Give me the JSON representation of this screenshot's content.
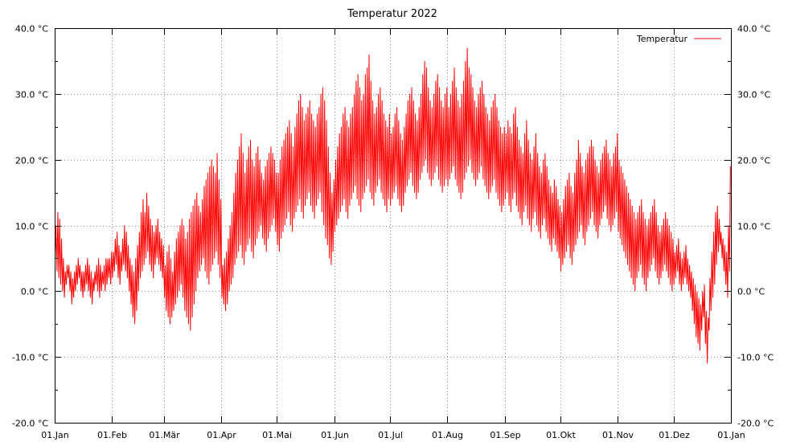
{
  "chart_data": {
    "type": "line",
    "title": "Temperatur 2022",
    "xlabel": "",
    "ylabel": "",
    "x_tick_labels": [
      "01.Jan",
      "01.Feb",
      "01.Mär",
      "01.Apr",
      "01.Mai",
      "01.Jun",
      "01.Jul",
      "01.Aug",
      "01.Sep",
      "01.Okt",
      "01.Nov",
      "01.Dez",
      "01.Jan"
    ],
    "x_tick_dates": [
      "2022-01-01",
      "2022-02-01",
      "2022-03-01",
      "2022-04-01",
      "2022-05-01",
      "2022-06-01",
      "2022-07-01",
      "2022-08-01",
      "2022-09-01",
      "2022-10-01",
      "2022-11-01",
      "2022-12-01",
      "2023-01-01"
    ],
    "xlim": [
      "2022-01-01",
      "2023-01-01"
    ],
    "y_tick_labels": [
      "-20.0 °C",
      "-10.0 °C",
      "0.0 °C",
      "10.0 °C",
      "20.0 °C",
      "30.0 °C",
      "40.0 °C"
    ],
    "y_tick_values": [
      -20,
      -10,
      0,
      10,
      20,
      30,
      40
    ],
    "y2_tick_labels": [
      "-20.0 °C",
      "-10.0 °C",
      "0.0 °C",
      "10.0 °C",
      "20.0 °C",
      "30.0 °C",
      "40.0 °C"
    ],
    "ylim": [
      -20,
      40
    ],
    "y_minor_step": 5,
    "grid": true,
    "legend_position": "top-right",
    "series": [
      {
        "name": "Temperatur",
        "color": "#ff0000",
        "daily_ranges": [
          {
            "start": "2022-01-01",
            "lows": [
              5,
              3,
              2,
              1,
              0,
              -1,
              1,
              2,
              0,
              -2,
              -1,
              0,
              1,
              2,
              0,
              -1,
              0,
              1,
              0,
              -1,
              -2,
              0,
              1,
              0,
              -1,
              0,
              1,
              0,
              1,
              2,
              1
            ],
            "highs": [
              10,
              12,
              11,
              8,
              5,
              3,
              4,
              4,
              3,
              2,
              3,
              4,
              5,
              4,
              3,
              3,
              4,
              5,
              4,
              3,
              2,
              3,
              4,
              5,
              4,
              3,
              4,
              5,
              5,
              5,
              6
            ]
          },
          {
            "start": "2022-02-01",
            "lows": [
              2,
              3,
              4,
              2,
              1,
              3,
              4,
              3,
              2,
              0,
              -2,
              -4,
              -5,
              -3,
              0,
              2,
              3,
              4,
              5,
              6,
              4,
              3,
              2,
              4,
              5,
              4,
              3,
              2
            ],
            "highs": [
              6,
              8,
              9,
              7,
              6,
              8,
              10,
              9,
              7,
              5,
              4,
              3,
              5,
              7,
              9,
              12,
              14,
              12,
              15,
              13,
              11,
              10,
              9,
              10,
              11,
              9,
              8,
              7
            ]
          },
          {
            "start": "2022-03-01",
            "lows": [
              -1,
              -3,
              -4,
              -5,
              -4,
              -3,
              -2,
              -1,
              0,
              1,
              -1,
              -3,
              -4,
              -5,
              -6,
              -4,
              -2,
              0,
              2,
              3,
              4,
              5,
              3,
              2,
              1,
              3,
              4,
              5,
              6,
              4,
              2
            ],
            "highs": [
              4,
              6,
              7,
              5,
              3,
              6,
              8,
              9,
              10,
              11,
              10,
              8,
              9,
              11,
              12,
              13,
              14,
              15,
              13,
              12,
              14,
              16,
              17,
              18,
              19,
              20,
              19,
              18,
              21,
              17,
              14
            ]
          },
          {
            "start": "2022-04-01",
            "lows": [
              -1,
              -2,
              -3,
              -2,
              0,
              1,
              2,
              4,
              5,
              6,
              7,
              5,
              4,
              6,
              7,
              8,
              6,
              5,
              7,
              8,
              9,
              10,
              8,
              7,
              6,
              8,
              9,
              10,
              11,
              9
            ],
            "highs": [
              4,
              5,
              6,
              8,
              10,
              12,
              15,
              18,
              20,
              22,
              24,
              21,
              18,
              20,
              22,
              23,
              20,
              19,
              21,
              22,
              20,
              18,
              17,
              19,
              20,
              21,
              22,
              21,
              20,
              18
            ]
          },
          {
            "start": "2022-05-01",
            "lows": [
              7,
              6,
              8,
              9,
              10,
              11,
              12,
              10,
              9,
              11,
              12,
              13,
              14,
              12,
              11,
              13,
              14,
              15,
              13,
              12,
              11,
              13,
              14,
              15,
              12,
              10,
              8,
              7,
              5,
              4,
              6
            ],
            "highs": [
              18,
              20,
              22,
              23,
              24,
              25,
              26,
              24,
              22,
              25,
              27,
              29,
              30,
              28,
              26,
              27,
              28,
              29,
              27,
              26,
              25,
              27,
              28,
              30,
              31,
              29,
              26,
              22,
              18,
              15,
              17
            ]
          },
          {
            "start": "2022-06-01",
            "lows": [
              9,
              10,
              11,
              12,
              13,
              14,
              12,
              11,
              13,
              14,
              15,
              16,
              14,
              13,
              12,
              14,
              15,
              16,
              17,
              15,
              14,
              13,
              15,
              16,
              17,
              15,
              14,
              13,
              12,
              14
            ],
            "highs": [
              20,
              22,
              24,
              25,
              27,
              28,
              26,
              25,
              27,
              28,
              30,
              32,
              33,
              31,
              29,
              30,
              33,
              34,
              36,
              32,
              29,
              27,
              28,
              30,
              31,
              29,
              27,
              26,
              25,
              27
            ]
          },
          {
            "start": "2022-07-01",
            "lows": [
              13,
              14,
              15,
              16,
              14,
              13,
              12,
              13,
              15,
              16,
              17,
              18,
              16,
              15,
              14,
              15,
              17,
              18,
              19,
              20,
              18,
              17,
              16,
              17,
              18,
              19,
              17,
              16,
              15,
              16,
              17
            ],
            "highs": [
              24,
              25,
              27,
              28,
              26,
              24,
              23,
              25,
              27,
              29,
              30,
              31,
              29,
              27,
              26,
              28,
              30,
              33,
              35,
              34,
              31,
              29,
              28,
              30,
              32,
              33,
              31,
              29,
              28,
              30,
              31
            ]
          },
          {
            "start": "2022-08-01",
            "lows": [
              16,
              17,
              18,
              19,
              17,
              16,
              15,
              14,
              15,
              17,
              18,
              19,
              20,
              18,
              17,
              16,
              17,
              18,
              19,
              17,
              16,
              15,
              14,
              15,
              16,
              17,
              15,
              14,
              13,
              12,
              13
            ],
            "highs": [
              28,
              30,
              32,
              34,
              31,
              29,
              28,
              30,
              32,
              35,
              37,
              34,
              33,
              31,
              29,
              28,
              30,
              31,
              32,
              30,
              28,
              27,
              26,
              28,
              29,
              30,
              28,
              26,
              25,
              24,
              25
            ]
          },
          {
            "start": "2022-09-01",
            "lows": [
              14,
              15,
              13,
              12,
              14,
              15,
              13,
              12,
              11,
              10,
              12,
              13,
              11,
              10,
              9,
              11,
              12,
              10,
              9,
              8,
              10,
              11,
              9,
              8,
              7,
              6,
              8,
              7,
              6,
              5
            ],
            "highs": [
              24,
              26,
              25,
              24,
              27,
              28,
              25,
              23,
              22,
              21,
              24,
              26,
              23,
              21,
              20,
              22,
              24,
              21,
              19,
              18,
              20,
              21,
              19,
              17,
              16,
              15,
              17,
              16,
              14,
              13
            ]
          },
          {
            "start": "2022-10-01",
            "lows": [
              3,
              4,
              5,
              6,
              7,
              5,
              4,
              6,
              7,
              8,
              9,
              10,
              8,
              7,
              9,
              10,
              11,
              12,
              10,
              9,
              8,
              10,
              11,
              12,
              13,
              11,
              10,
              9,
              10,
              11,
              12
            ],
            "highs": [
              12,
              14,
              16,
              17,
              18,
              16,
              15,
              18,
              20,
              23,
              21,
              19,
              18,
              20,
              21,
              22,
              23,
              22,
              20,
              19,
              18,
              20,
              21,
              22,
              23,
              21,
              20,
              19,
              21,
              22,
              24
            ]
          },
          {
            "start": "2022-11-01",
            "lows": [
              9,
              8,
              7,
              6,
              5,
              4,
              3,
              2,
              1,
              0,
              2,
              3,
              4,
              2,
              1,
              0,
              2,
              3,
              4,
              5,
              3,
              2,
              1,
              2,
              3,
              4,
              3,
              2,
              1,
              0
            ],
            "highs": [
              20,
              19,
              18,
              17,
              16,
              15,
              14,
              13,
              12,
              11,
              12,
              13,
              14,
              12,
              11,
              10,
              11,
              12,
              13,
              14,
              12,
              10,
              9,
              10,
              11,
              12,
              11,
              10,
              9,
              8
            ]
          },
          {
            "start": "2022-12-01",
            "lows": [
              1,
              2,
              3,
              1,
              0,
              1,
              2,
              1,
              0,
              -1,
              -3,
              -5,
              -7,
              -8,
              -9,
              -6,
              -4,
              -8,
              -11,
              -6,
              -3,
              -1,
              1,
              4,
              6,
              7,
              5,
              3,
              1,
              -1,
              3
            ],
            "highs": [
              6,
              7,
              8,
              6,
              5,
              6,
              7,
              5,
              4,
              3,
              2,
              1,
              0,
              -1,
              -2,
              0,
              1,
              -3,
              -4,
              2,
              6,
              9,
              12,
              13,
              11,
              9,
              8,
              7,
              6,
              10,
              19
            ]
          }
        ]
      }
    ]
  }
}
